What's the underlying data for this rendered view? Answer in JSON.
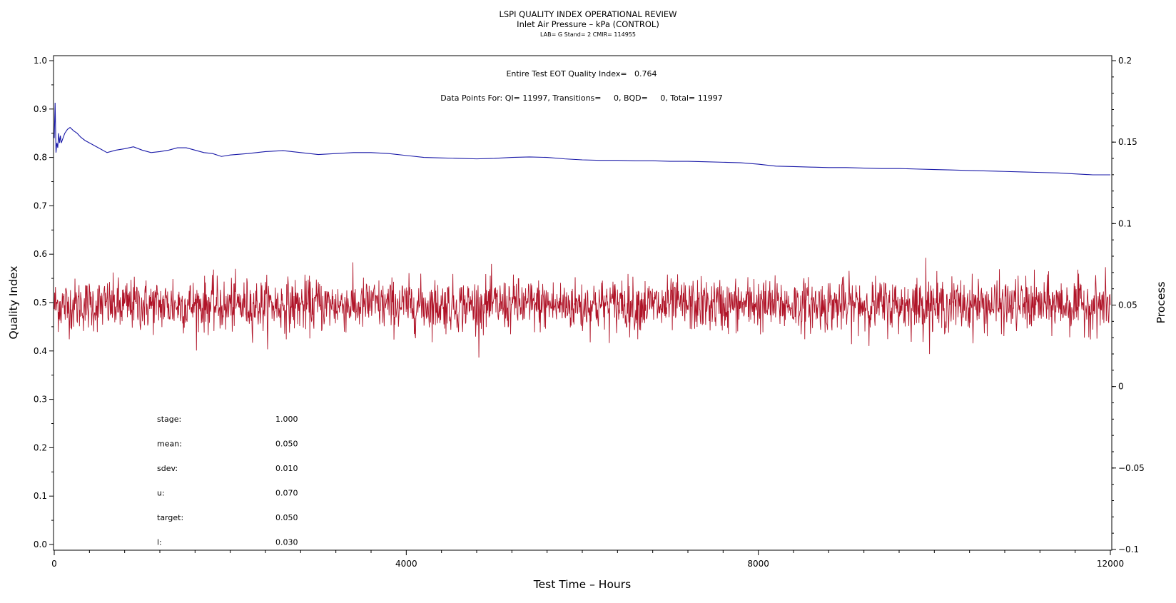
{
  "chart_data": {
    "type": "line",
    "title": "LSPI QUALITY INDEX OPERATIONAL REVIEW",
    "subtitle": "Inlet Air Pressure – kPa (CONTROL)",
    "subtitle2": "LAB= G Stand= 2 CMIR= 114955",
    "xlabel": "Test Time – Hours",
    "ylabel": "Quality Index",
    "y2label": "Process",
    "xlim": [
      0,
      12000
    ],
    "ylim": [
      0.0,
      1.0
    ],
    "y2lim": [
      -0.1,
      0.2
    ],
    "x_ticks": [
      "0",
      "4000",
      "8000",
      "12000"
    ],
    "y_ticks": [
      "0.0",
      "0.1",
      "0.2",
      "0.3",
      "0.4",
      "0.5",
      "0.6",
      "0.7",
      "0.8",
      "0.9",
      "1.0"
    ],
    "y2_ticks": [
      "-0.1",
      "-0.05",
      "0",
      "0.05",
      "0.1",
      "0.15",
      "0.2"
    ],
    "annotation_qi": "Entire Test EOT Quality Index=   0.764",
    "annotation_points": "Data Points For: QI= 11997, Transitions=     0, BQD=     0, Total= 11997",
    "stats": [
      {
        "label": "stage:",
        "value": "1.000"
      },
      {
        "label": "mean:",
        "value": "0.050"
      },
      {
        "label": "sdev:",
        "value": "0.010"
      },
      {
        "label": "u:",
        "value": "0.070"
      },
      {
        "label": "target:",
        "value": "0.050"
      },
      {
        "label": "l:",
        "value": "0.030"
      }
    ],
    "series": [
      {
        "axis": "left",
        "color": "#1a1aa8",
        "x": [
          0,
          10,
          20,
          30,
          40,
          50,
          60,
          70,
          80,
          100,
          120,
          150,
          180,
          220,
          260,
          300,
          350,
          400,
          450,
          500,
          600,
          700,
          800,
          900,
          1000,
          1100,
          1200,
          1300,
          1400,
          1500,
          1600,
          1700,
          1800,
          1900,
          2000,
          2200,
          2400,
          2600,
          2800,
          3000,
          3200,
          3400,
          3600,
          3800,
          4000,
          4200,
          4400,
          4600,
          4800,
          5000,
          5200,
          5400,
          5600,
          5800,
          6000,
          6200,
          6400,
          6600,
          6800,
          7000,
          7200,
          7400,
          7600,
          7800,
          8000,
          8200,
          8400,
          8600,
          8800,
          9000,
          9200,
          9400,
          9600,
          9800,
          10000,
          10200,
          10400,
          10600,
          10800,
          11000,
          11200,
          11400,
          11600,
          11800,
          12000
        ],
        "values": [
          0.84,
          0.913,
          0.81,
          0.83,
          0.82,
          0.85,
          0.83,
          0.845,
          0.83,
          0.84,
          0.85,
          0.858,
          0.862,
          0.855,
          0.85,
          0.842,
          0.835,
          0.83,
          0.825,
          0.82,
          0.81,
          0.815,
          0.818,
          0.822,
          0.815,
          0.81,
          0.812,
          0.815,
          0.82,
          0.82,
          0.815,
          0.81,
          0.808,
          0.802,
          0.805,
          0.808,
          0.812,
          0.814,
          0.81,
          0.806,
          0.808,
          0.81,
          0.81,
          0.808,
          0.804,
          0.8,
          0.799,
          0.798,
          0.797,
          0.798,
          0.8,
          0.801,
          0.8,
          0.797,
          0.795,
          0.794,
          0.794,
          0.793,
          0.793,
          0.792,
          0.792,
          0.791,
          0.79,
          0.789,
          0.786,
          0.782,
          0.781,
          0.78,
          0.779,
          0.779,
          0.778,
          0.777,
          0.777,
          0.776,
          0.775,
          0.774,
          0.773,
          0.772,
          0.771,
          0.77,
          0.769,
          0.768,
          0.766,
          0.764,
          0.764
        ]
      },
      {
        "axis": "right",
        "color": "#b01428",
        "x_start": 0,
        "x_end": 12000,
        "points": 11997,
        "mean": 0.05,
        "sdev": 0.01,
        "values": [
          0.05,
          0.042,
          0.058,
          0.047,
          0.055,
          0.038,
          0.061,
          0.044,
          0.052,
          0.066,
          0.041,
          0.049,
          0.057,
          0.035,
          0.053,
          0.046,
          0.06,
          0.043,
          0.051,
          0.039,
          0.064,
          0.048,
          0.055,
          0.042,
          0.059,
          0.037,
          0.054,
          0.046,
          0.062,
          0.044,
          0.05,
          0.057,
          0.04,
          0.053,
          0.047,
          0.063,
          0.041,
          0.056,
          0.045,
          0.051,
          0.034,
          0.058,
          0.048,
          0.065,
          0.043,
          0.054,
          0.039,
          0.061,
          0.047,
          0.052,
          0.058,
          0.036,
          0.05,
          0.066,
          0.044,
          0.055,
          0.041,
          0.06,
          0.048,
          0.053,
          0.038,
          0.062,
          0.046,
          0.057,
          0.043,
          0.051,
          0.079,
          0.039,
          0.056,
          0.047,
          0.061,
          0.042,
          0.053,
          0.068,
          0.045,
          0.05,
          0.058,
          0.037,
          0.054,
          0.046
        ]
      }
    ]
  }
}
